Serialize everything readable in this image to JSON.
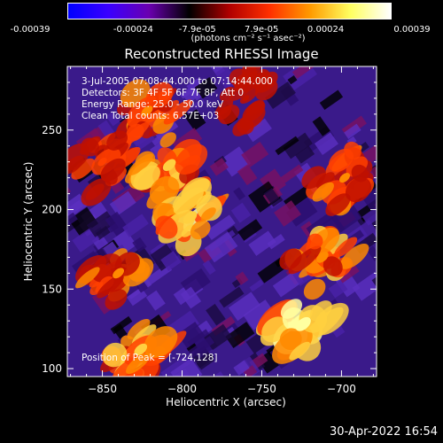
{
  "colorbar": {
    "tick_labels": [
      "-0.00039",
      "-0.00024",
      "-7.9e-05",
      "7.9e-05",
      "0.00024",
      "0.00039"
    ],
    "units_label": "(photons cm⁻² s⁻¹ asec⁻²)",
    "colors": [
      "#0000ff",
      "#3a00ff",
      "#6a00b0",
      "#000000",
      "#b00000",
      "#ff3000",
      "#ff9a00",
      "#ffff60",
      "#ffffff"
    ]
  },
  "chart_data": {
    "type": "heatmap",
    "title": "Reconstructed RHESSI Image",
    "xlabel": "Heliocentric X (arcsec)",
    "ylabel": "Heliocentric Y (arcsec)",
    "xlim": [
      -872,
      -678
    ],
    "ylim": [
      95,
      290
    ],
    "xticks": [
      -850,
      -800,
      -750,
      -700
    ],
    "yticks": [
      100,
      150,
      200,
      250
    ],
    "peak_position": [
      -724,
      128
    ],
    "annotations": {
      "time_range": "3-Jul-2005 07:08:44.000 to 07:14:44.000",
      "detectors": "Detectors: 3F 4F 5F 6F 7F 8F, Att 0",
      "energy_range": "Energy Range: 25.0 - 50.0 keV",
      "clean": "Clean     Total counts: 6.57E+03",
      "peak": "Position of Peak = [-724,128]"
    },
    "bright_regions": [
      {
        "x": -822,
        "y": 262,
        "intensity": 0.75
      },
      {
        "x": -808,
        "y": 228,
        "intensity": 0.85
      },
      {
        "x": -795,
        "y": 195,
        "intensity": 0.9
      },
      {
        "x": -840,
        "y": 160,
        "intensity": 0.75
      },
      {
        "x": -826,
        "y": 112,
        "intensity": 0.85
      },
      {
        "x": -850,
        "y": 230,
        "intensity": 0.6
      },
      {
        "x": -724,
        "y": 128,
        "intensity": 1.0
      },
      {
        "x": -712,
        "y": 170,
        "intensity": 0.8
      },
      {
        "x": -698,
        "y": 220,
        "intensity": 0.7
      },
      {
        "x": -760,
        "y": 270,
        "intensity": 0.45
      }
    ]
  },
  "footer": {
    "timestamp": "30-Apr-2022 16:54"
  }
}
